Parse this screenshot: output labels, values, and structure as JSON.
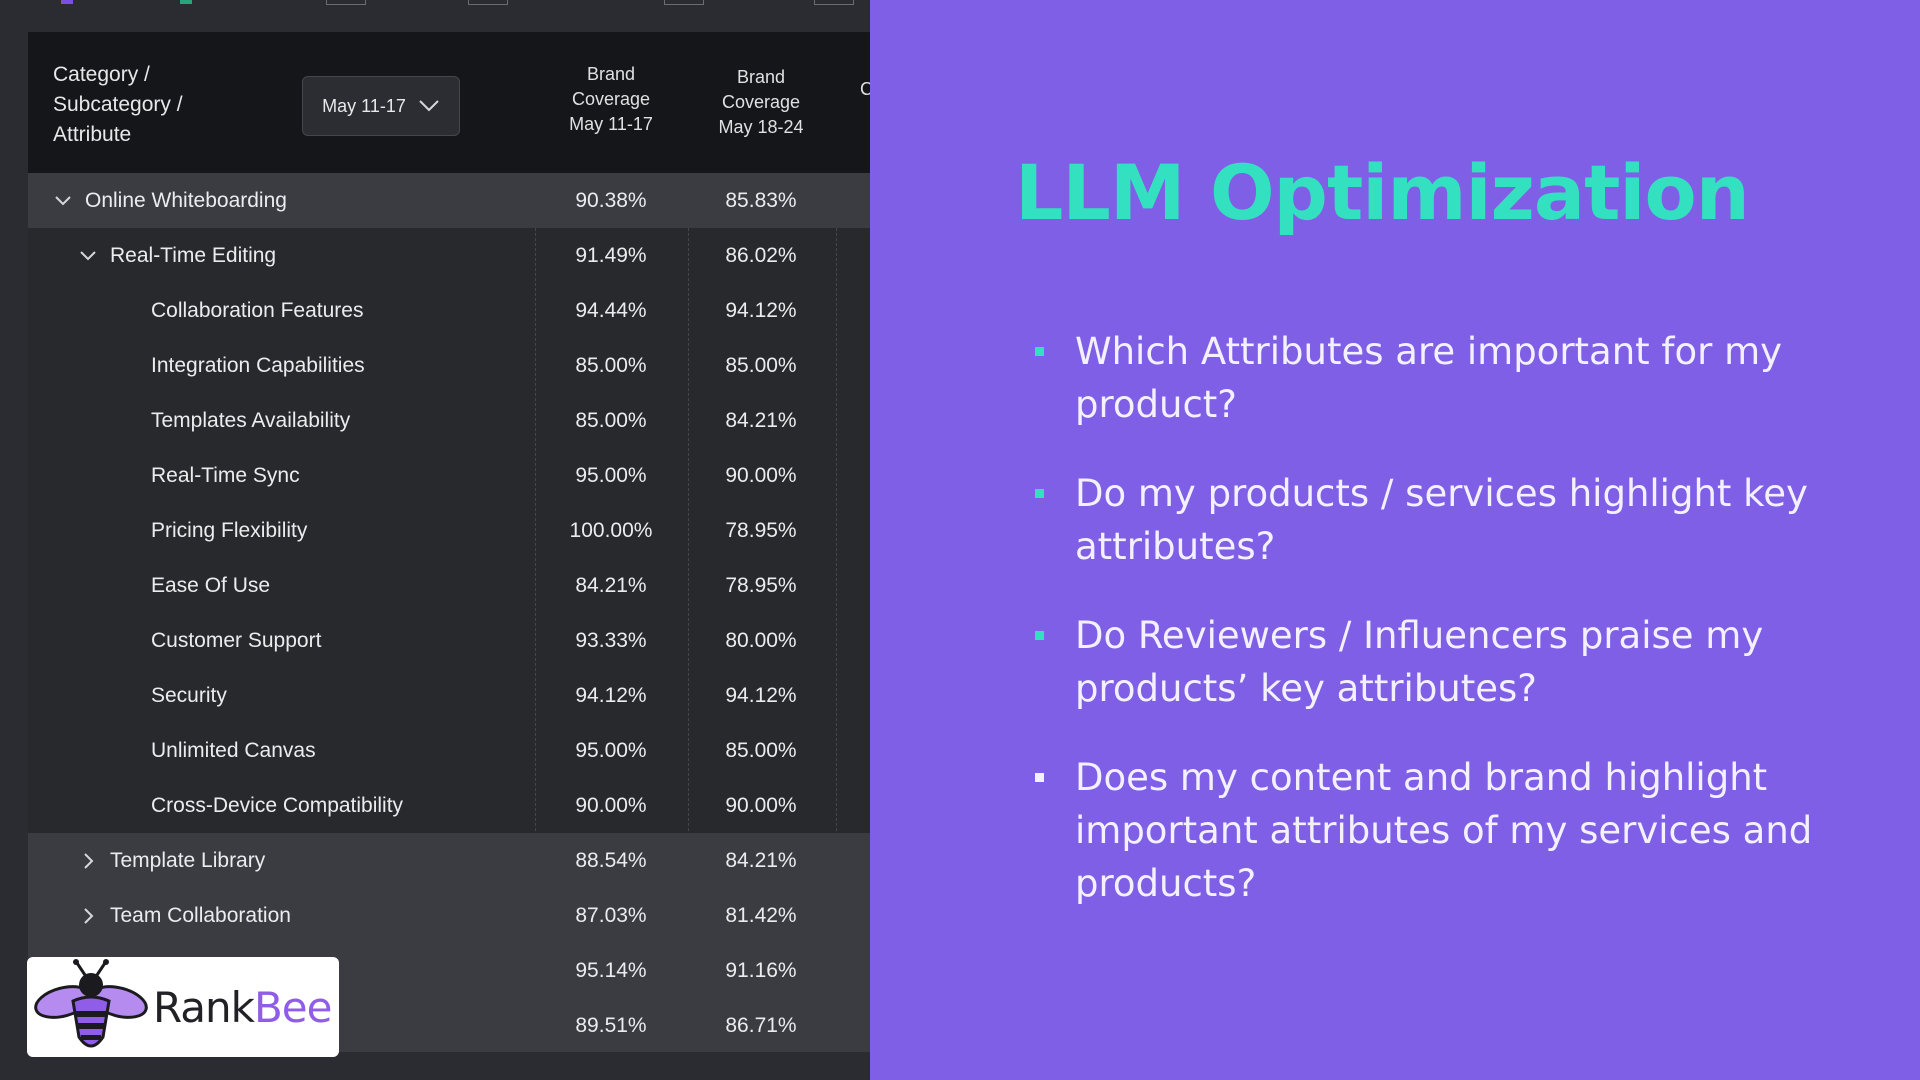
{
  "table": {
    "header": {
      "category_lines": [
        "Category /",
        "Subcategory /",
        "Attribute"
      ],
      "date_selector": "May 11-17",
      "col1_lines": [
        "Brand",
        "Coverage",
        "May 11-17"
      ],
      "col2_lines": [
        "Brand",
        "Coverage",
        "May 18-24"
      ],
      "col3_cut": "C"
    },
    "rows": [
      {
        "name": "Online Whiteboarding",
        "v1": "90.38%",
        "v2": "85.83%"
      },
      {
        "name": "Real-Time Editing",
        "v1": "91.49%",
        "v2": "86.02%"
      },
      {
        "name": "Collaboration Features",
        "v1": "94.44%",
        "v2": "94.12%"
      },
      {
        "name": "Integration Capabilities",
        "v1": "85.00%",
        "v2": "85.00%"
      },
      {
        "name": "Templates Availability",
        "v1": "85.00%",
        "v2": "84.21%"
      },
      {
        "name": "Real-Time Sync",
        "v1": "95.00%",
        "v2": "90.00%"
      },
      {
        "name": "Pricing Flexibility",
        "v1": "100.00%",
        "v2": "78.95%"
      },
      {
        "name": "Ease Of Use",
        "v1": "84.21%",
        "v2": "78.95%"
      },
      {
        "name": "Customer Support",
        "v1": "93.33%",
        "v2": "80.00%"
      },
      {
        "name": "Security",
        "v1": "94.12%",
        "v2": "94.12%"
      },
      {
        "name": "Unlimited Canvas",
        "v1": "95.00%",
        "v2": "85.00%"
      },
      {
        "name": "Cross-Device Compatibility",
        "v1": "90.00%",
        "v2": "90.00%"
      },
      {
        "name": "Template Library",
        "v1": "88.54%",
        "v2": "84.21%"
      },
      {
        "name": "Team Collaboration",
        "v1": "87.03%",
        "v2": "81.42%"
      },
      {
        "name": "",
        "v1": "95.14%",
        "v2": "91.16%"
      },
      {
        "name": "",
        "v1": "89.51%",
        "v2": "86.71%"
      }
    ]
  },
  "logo": {
    "part1": "Rank",
    "part2": "Bee"
  },
  "slide": {
    "title": "LLM Optimization",
    "bullets": [
      "Which Attributes are important for my product?",
      "Do my products / services highlight key attributes?",
      "Do Reviewers / Influencers praise my products’ key attributes?",
      "Does my content and brand highlight important attributes of my services and products?"
    ]
  },
  "colors": {
    "accent_teal": "#33e0c0",
    "slide_bg": "#7f5fe6",
    "bee_purple": "#8f5de8"
  }
}
